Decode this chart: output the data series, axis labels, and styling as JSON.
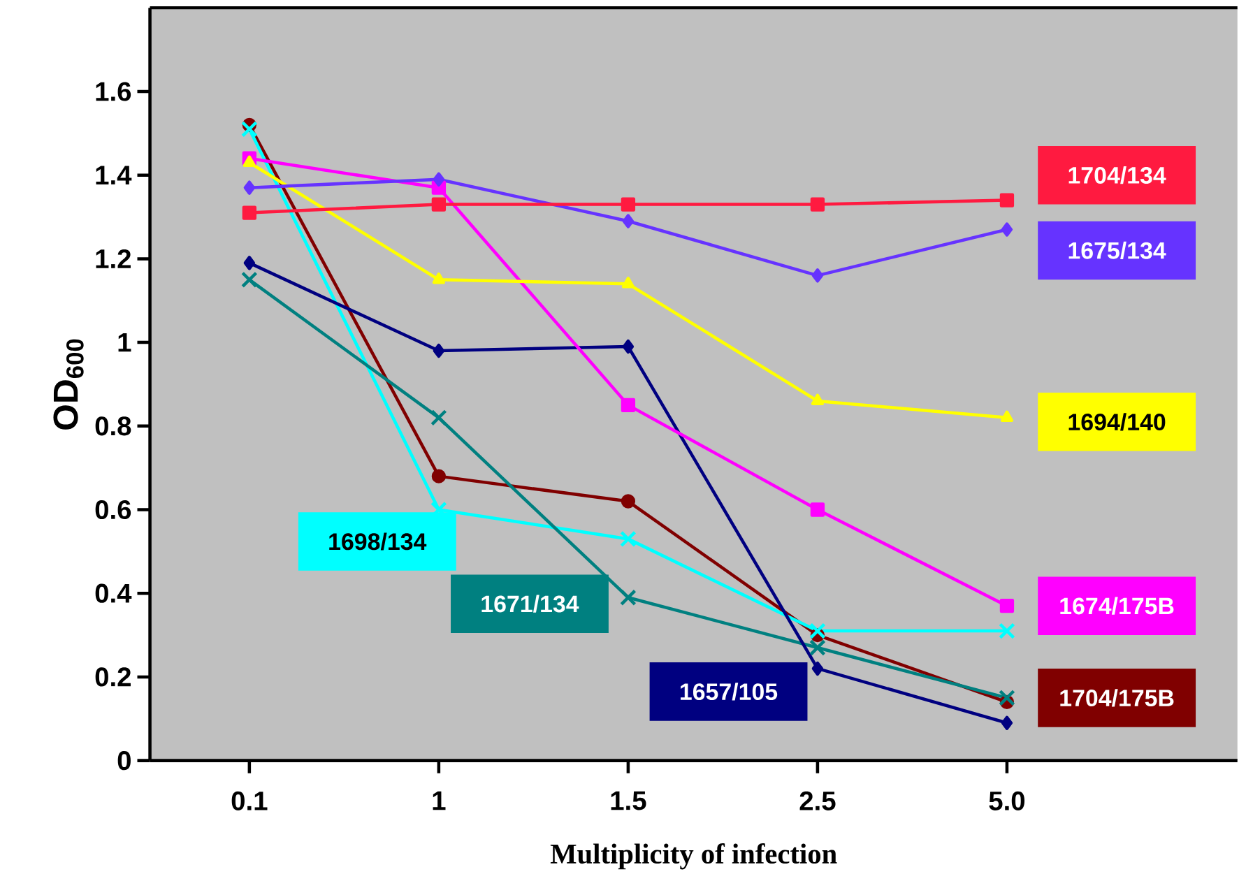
{
  "chart_data": {
    "type": "line",
    "xlabel": "Multiplicity of infection",
    "ylabel": "OD$_{600}$",
    "categories": [
      "0.1",
      "1",
      "1.5",
      "2.5",
      "5.0"
    ],
    "ylim": [
      0,
      1.8
    ],
    "yticks": [
      0,
      0.2,
      0.4,
      0.6,
      0.8,
      1,
      1.2,
      1.4,
      1.6
    ],
    "series": [
      {
        "name": "1704/134",
        "color": "#ff1a40",
        "marker": "square",
        "values": [
          1.31,
          1.33,
          1.33,
          1.33,
          1.34
        ]
      },
      {
        "name": "1675/134",
        "color": "#6633ff",
        "marker": "diamond",
        "values": [
          1.37,
          1.39,
          1.29,
          1.16,
          1.27
        ]
      },
      {
        "name": "1694/140",
        "color": "#ffff00",
        "marker": "triangle",
        "values": [
          1.43,
          1.15,
          1.14,
          0.86,
          0.82
        ]
      },
      {
        "name": "1674/175B",
        "color": "#ff00ff",
        "marker": "square",
        "values": [
          1.44,
          1.37,
          0.85,
          0.6,
          0.37
        ]
      },
      {
        "name": "1657/105",
        "color": "#000080",
        "marker": "diamond",
        "values": [
          1.19,
          0.98,
          0.99,
          0.22,
          0.09
        ]
      },
      {
        "name": "1671/134",
        "color": "#008080",
        "marker": "cross",
        "values": [
          1.15,
          0.82,
          0.39,
          0.27,
          0.15
        ]
      },
      {
        "name": "1698/134",
        "color": "#00ffff",
        "marker": "cross",
        "values": [
          1.51,
          0.6,
          0.53,
          0.31,
          0.31
        ]
      },
      {
        "name": "1704/175B",
        "color": "#800000",
        "marker": "circle",
        "values": [
          1.52,
          0.68,
          0.62,
          0.3,
          0.14
        ]
      }
    ]
  }
}
